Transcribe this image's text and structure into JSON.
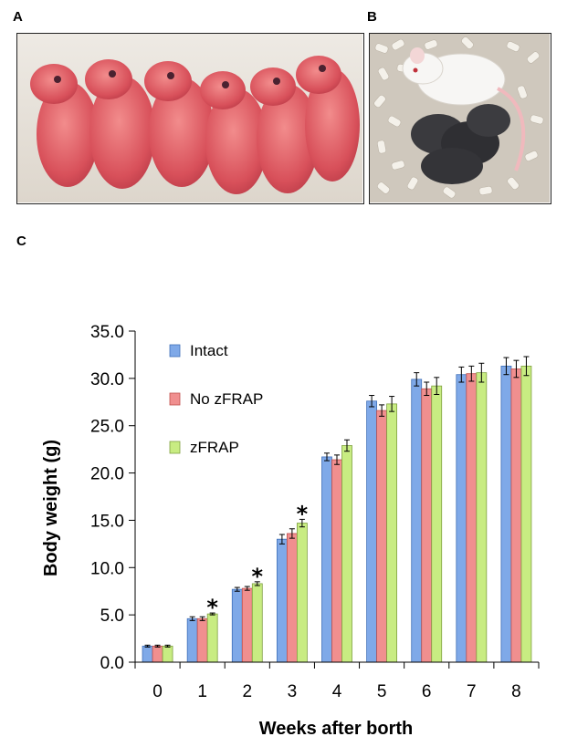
{
  "panels": {
    "a": "A",
    "b": "B",
    "c": "C"
  },
  "chart_data": {
    "type": "bar",
    "title": "",
    "xlabel": "Weeks after borth",
    "ylabel": "Body weight (g)",
    "ylim": [
      0,
      35
    ],
    "yticks": [
      "0.0",
      "5.0",
      "10.0",
      "15.0",
      "20.0",
      "25.0",
      "30.0",
      "35.0"
    ],
    "categories": [
      "0",
      "1",
      "2",
      "3",
      "4",
      "5",
      "6",
      "7",
      "8"
    ],
    "series": [
      {
        "name": "Intact",
        "color": "#7fa9e8",
        "edge": "#3f6fb8",
        "values": [
          1.7,
          4.6,
          7.7,
          13.0,
          21.7,
          27.6,
          29.9,
          30.4,
          31.3
        ],
        "errors": [
          0.1,
          0.2,
          0.2,
          0.5,
          0.4,
          0.6,
          0.7,
          0.8,
          0.9
        ]
      },
      {
        "name": "No zFRAP",
        "color": "#f08f8f",
        "edge": "#c0504d",
        "values": [
          1.7,
          4.6,
          7.8,
          13.6,
          21.4,
          26.6,
          28.9,
          30.5,
          31.0
        ],
        "errors": [
          0.1,
          0.2,
          0.2,
          0.5,
          0.5,
          0.6,
          0.7,
          0.8,
          0.9
        ]
      },
      {
        "name": "zFRAP",
        "color": "#c8ec82",
        "edge": "#7fa040",
        "values": [
          1.7,
          5.1,
          8.3,
          14.7,
          22.9,
          27.3,
          29.2,
          30.6,
          31.3
        ],
        "errors": [
          0.1,
          0.1,
          0.2,
          0.4,
          0.6,
          0.8,
          0.9,
          1.0,
          1.0
        ]
      }
    ],
    "annotations": [
      {
        "text": "*",
        "category": "1",
        "series": "zFRAP"
      },
      {
        "text": "*",
        "category": "2",
        "series": "zFRAP"
      },
      {
        "text": "*",
        "category": "3",
        "series": "zFRAP"
      }
    ],
    "legend_position": "top-left",
    "grid": false
  }
}
